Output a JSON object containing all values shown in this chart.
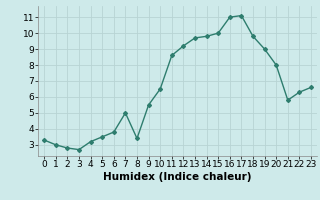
{
  "x": [
    0,
    1,
    2,
    3,
    4,
    5,
    6,
    7,
    8,
    9,
    10,
    11,
    12,
    13,
    14,
    15,
    16,
    17,
    18,
    19,
    20,
    21,
    22,
    23
  ],
  "y": [
    3.3,
    3.0,
    2.8,
    2.7,
    3.2,
    3.5,
    3.8,
    5.0,
    3.4,
    5.5,
    6.5,
    8.6,
    9.2,
    9.7,
    9.8,
    10.0,
    11.0,
    11.1,
    9.8,
    9.0,
    8.0,
    5.8,
    6.3,
    6.6
  ],
  "line_color": "#2e7d6e",
  "marker": "D",
  "marker_size": 2.0,
  "line_width": 1.0,
  "xlabel": "Humidex (Indice chaleur)",
  "xlim": [
    -0.5,
    23.5
  ],
  "ylim": [
    2.3,
    11.7
  ],
  "yticks": [
    3,
    4,
    5,
    6,
    7,
    8,
    9,
    10,
    11
  ],
  "xticks": [
    0,
    1,
    2,
    3,
    4,
    5,
    6,
    7,
    8,
    9,
    10,
    11,
    12,
    13,
    14,
    15,
    16,
    17,
    18,
    19,
    20,
    21,
    22,
    23
  ],
  "bg_color": "#ceeaea",
  "grid_color": "#b8d4d4",
  "tick_label_fontsize": 6.5,
  "xlabel_fontsize": 7.5
}
